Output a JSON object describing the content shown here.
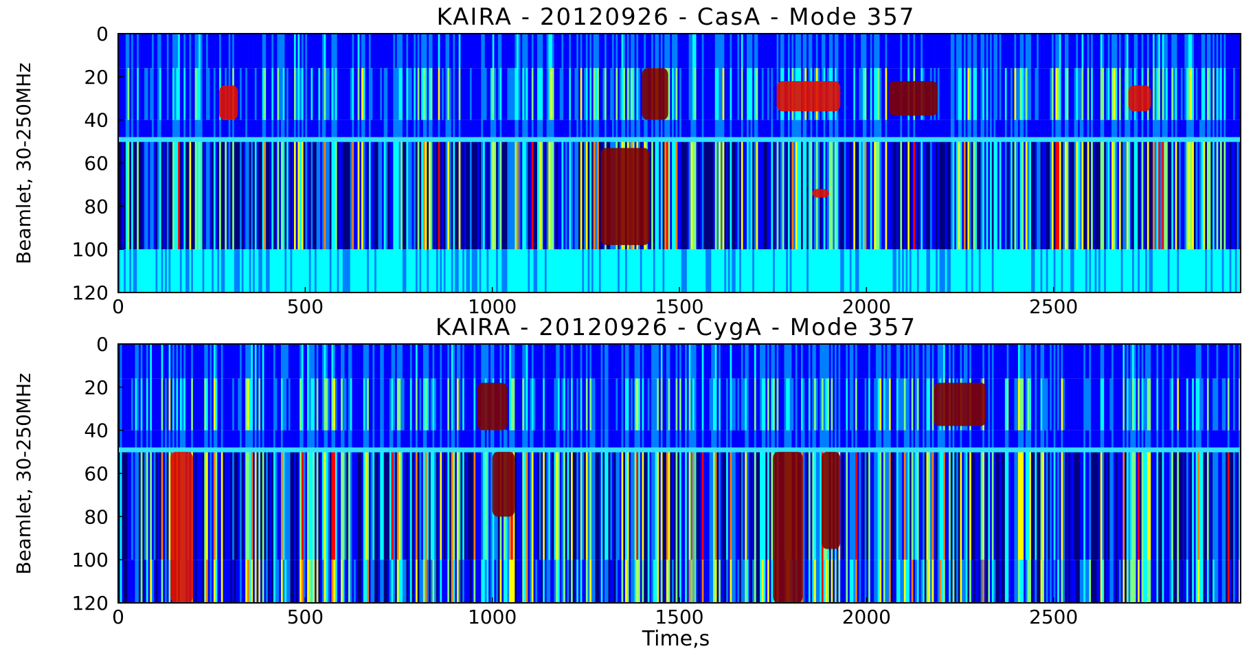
{
  "figure": {
    "xlabel": "Time,s"
  },
  "colormap": [
    "#00007f",
    "#0000ff",
    "#007fff",
    "#00ffff",
    "#7fff7f",
    "#ffff00",
    "#ff7f00",
    "#ff0000",
    "#7f0000"
  ],
  "chart_data": [
    {
      "type": "heatmap",
      "title": "KAIRA - 20120926 - CasA - Mode 357",
      "xlabel": "",
      "ylabel": "Beamlet, 30-250MHz",
      "xlim": [
        0,
        3000
      ],
      "ylim": [
        120,
        0
      ],
      "y_inverted": true,
      "xticks": [
        0,
        500,
        1000,
        1500,
        2000,
        2500
      ],
      "yticks": [
        0,
        20,
        40,
        60,
        80,
        100,
        120
      ],
      "bands": [
        {
          "from": 0,
          "to": 48,
          "description": "upper band, mostly low-to-mid intensity with scattered strong patches"
        },
        {
          "from": 48,
          "to": 50,
          "description": "bright cyan boundary line"
        },
        {
          "from": 50,
          "to": 100,
          "description": "middle band, many narrow vertical stripes"
        },
        {
          "from": 100,
          "to": 120,
          "description": "lower band, uniform cyan"
        }
      ],
      "hotspots": [
        {
          "x": [
            1290,
            1420
          ],
          "y": [
            53,
            98
          ],
          "level": "max"
        },
        {
          "x": [
            1400,
            1470
          ],
          "y": [
            16,
            40
          ],
          "level": "max"
        },
        {
          "x": [
            1760,
            1930
          ],
          "y": [
            22,
            36
          ],
          "level": "high"
        },
        {
          "x": [
            2060,
            2190
          ],
          "y": [
            22,
            38
          ],
          "level": "max"
        },
        {
          "x": [
            2700,
            2760
          ],
          "y": [
            24,
            36
          ],
          "level": "high"
        },
        {
          "x": [
            270,
            320
          ],
          "y": [
            24,
            40
          ],
          "level": "high"
        },
        {
          "x": [
            1855,
            1900
          ],
          "y": [
            72,
            76
          ],
          "level": "high"
        }
      ]
    },
    {
      "type": "heatmap",
      "title": "KAIRA - 20120926 - CygA - Mode 357",
      "xlabel": "Time,s",
      "ylabel": "Beamlet, 30-250MHz",
      "xlim": [
        0,
        3000
      ],
      "ylim": [
        120,
        0
      ],
      "y_inverted": true,
      "xticks": [
        0,
        500,
        1000,
        1500,
        2000,
        2500
      ],
      "yticks": [
        0,
        20,
        40,
        60,
        80,
        100,
        120
      ],
      "bands": [
        {
          "from": 0,
          "to": 48,
          "description": "upper band, bursts around 20-40"
        },
        {
          "from": 48,
          "to": 50,
          "description": "bright cyan boundary line"
        },
        {
          "from": 50,
          "to": 100,
          "description": "middle band, broad vertical stripes"
        },
        {
          "from": 100,
          "to": 120,
          "description": "lower band, vertical stripes"
        }
      ],
      "hotspots": [
        {
          "x": [
            960,
            1040
          ],
          "y": [
            18,
            40
          ],
          "level": "max"
        },
        {
          "x": [
            2180,
            2320
          ],
          "y": [
            18,
            38
          ],
          "level": "max"
        },
        {
          "x": [
            1000,
            1060
          ],
          "y": [
            50,
            80
          ],
          "level": "max"
        },
        {
          "x": [
            1750,
            1830
          ],
          "y": [
            50,
            120
          ],
          "level": "max"
        },
        {
          "x": [
            1880,
            1930
          ],
          "y": [
            50,
            95
          ],
          "level": "max"
        },
        {
          "x": [
            140,
            200
          ],
          "y": [
            50,
            120
          ],
          "level": "high"
        }
      ]
    }
  ]
}
